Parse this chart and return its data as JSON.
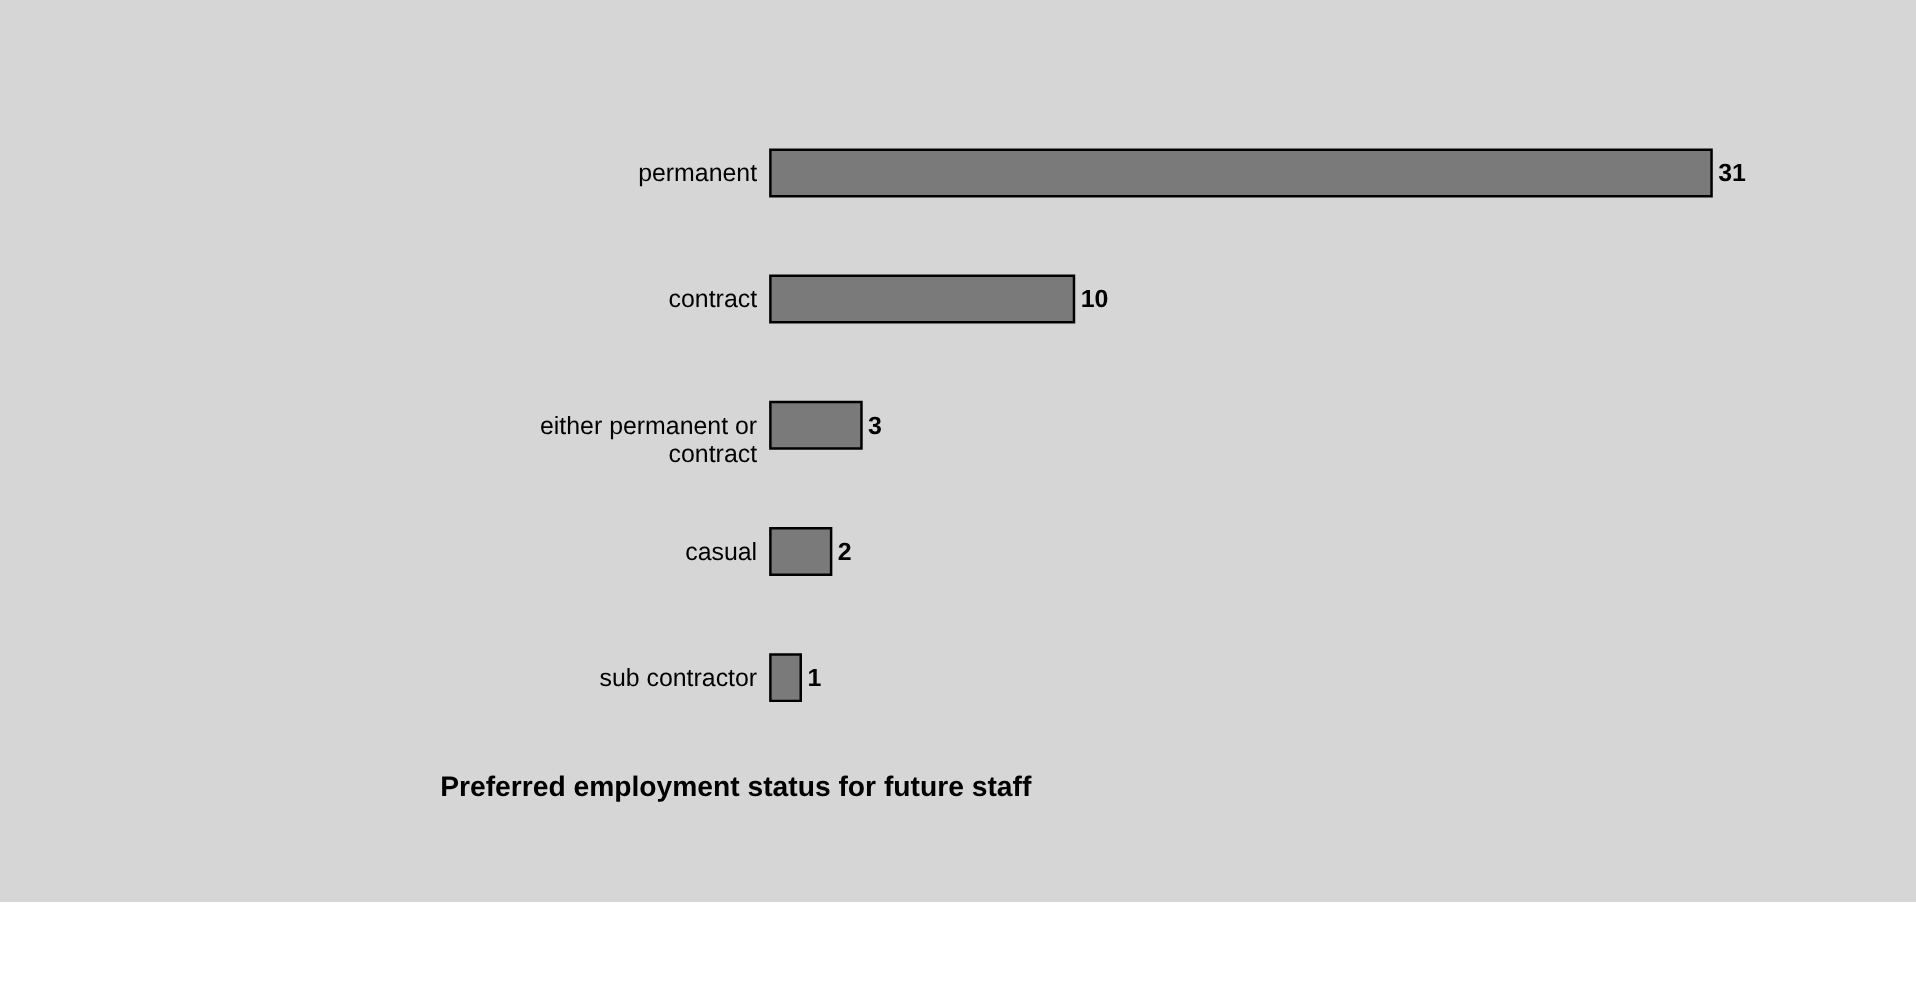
{
  "chart_data": {
    "type": "bar",
    "orientation": "horizontal",
    "title": "Preferred employment status for future staff",
    "categories": [
      "permanent",
      "contract",
      "either permanent or contract",
      "casual",
      "sub contractor"
    ],
    "values": [
      31,
      10,
      3,
      2,
      1
    ],
    "color": "#7a7a7a",
    "data_labels": true
  }
}
